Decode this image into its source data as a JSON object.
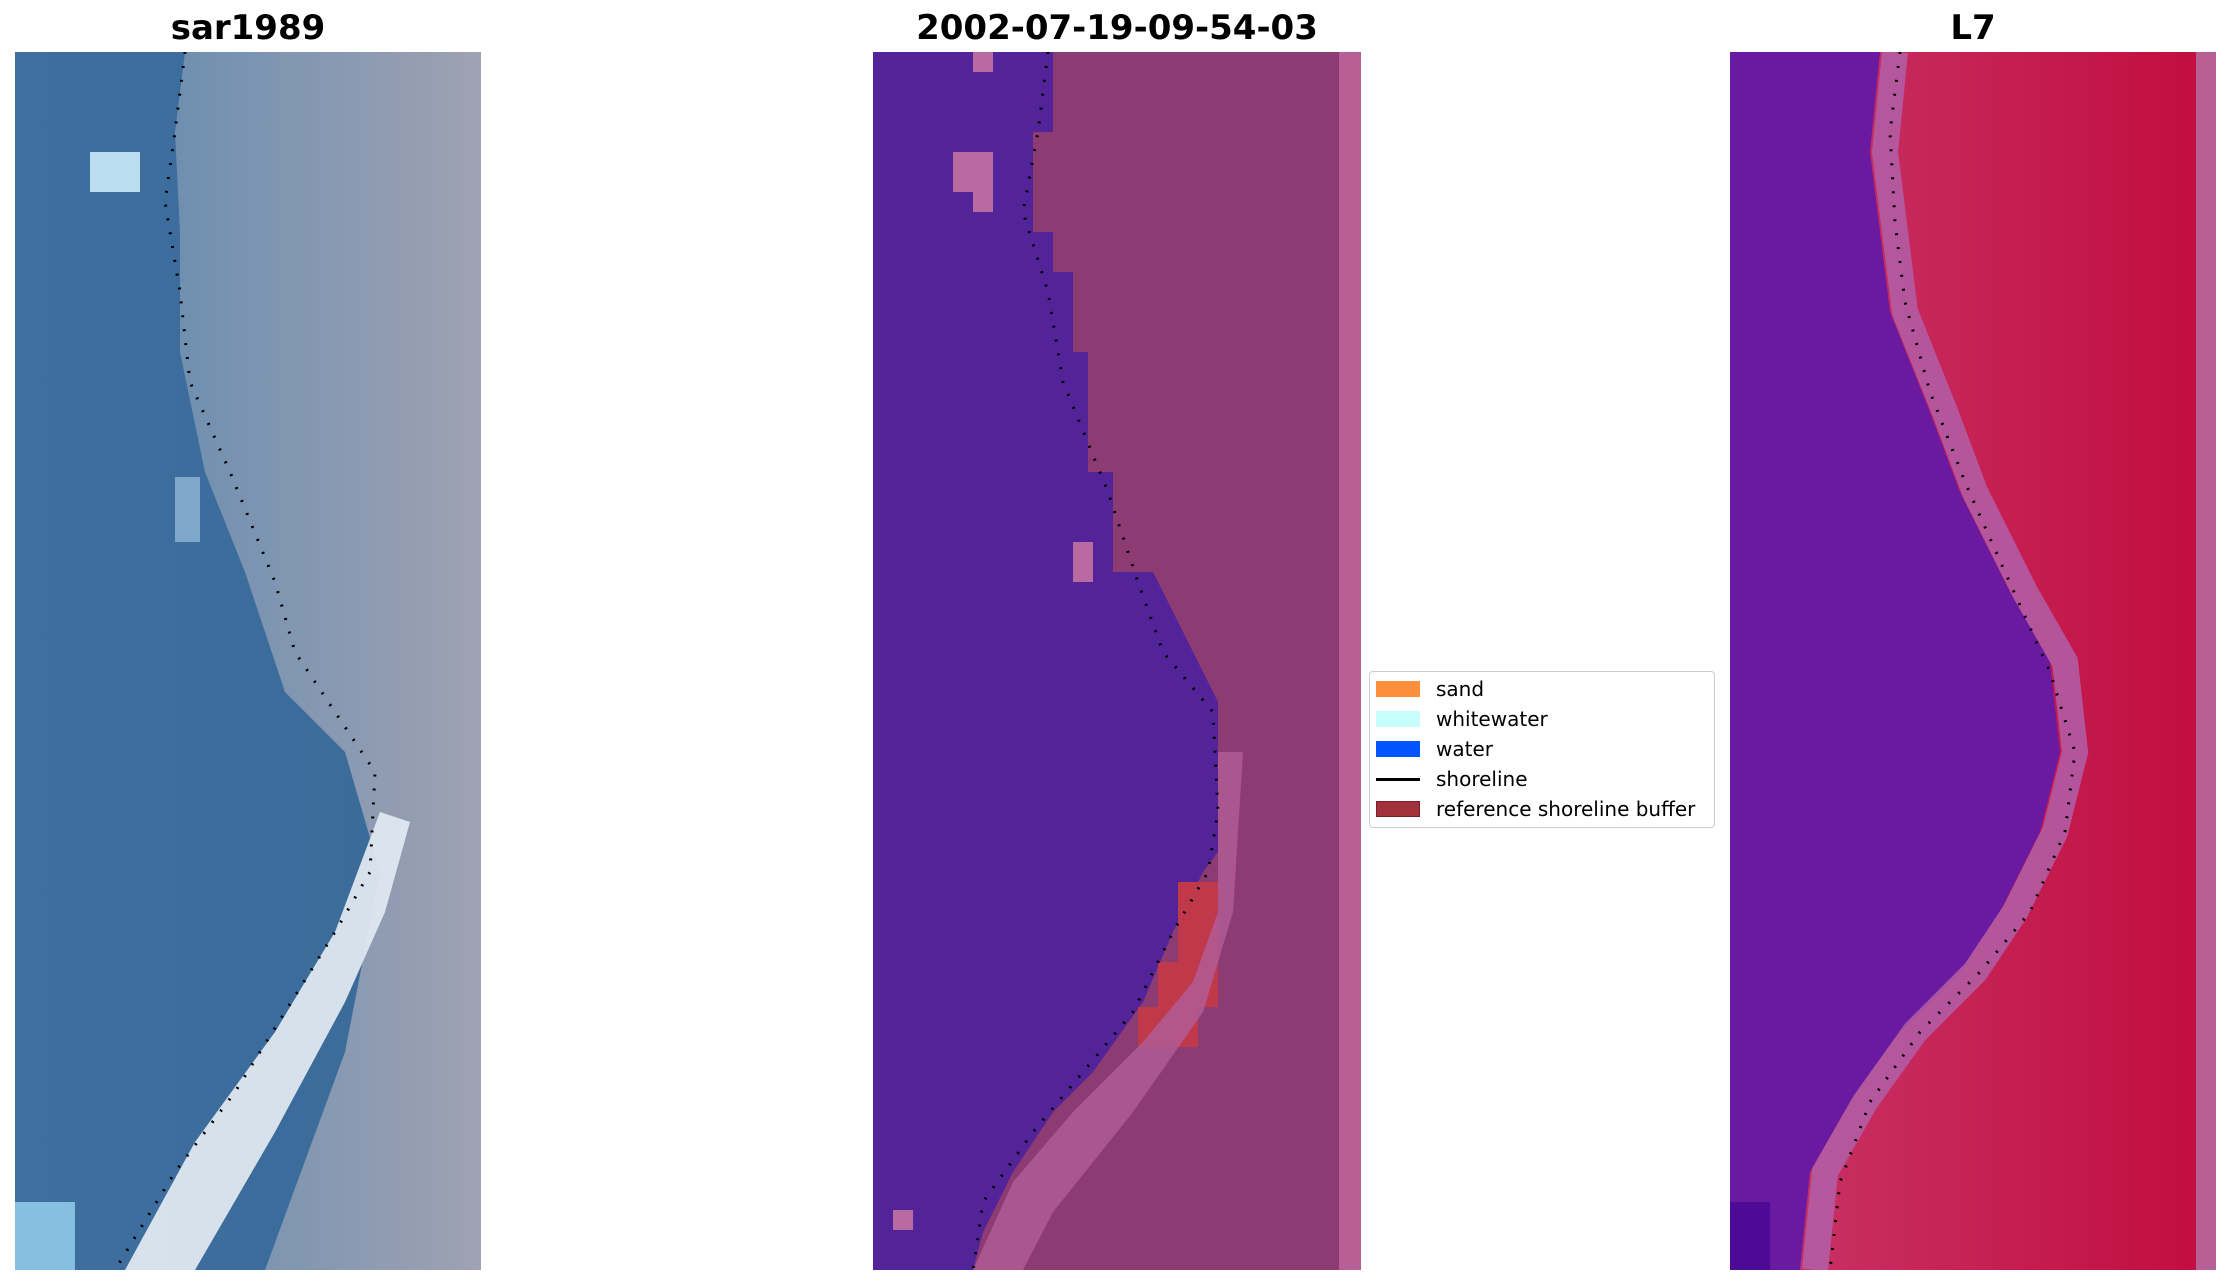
{
  "panels": {
    "left_title": "sar1989",
    "middle_title": "2002-07-19-09-54-03",
    "right_title": "L7"
  },
  "legend": {
    "items": [
      {
        "label": "sand",
        "color": "#fd8f3c",
        "kind": "patch"
      },
      {
        "label": "whitewater",
        "color": "#c7fdfb",
        "kind": "patch"
      },
      {
        "label": "water",
        "color": "#0055ff",
        "kind": "patch"
      },
      {
        "label": "shoreline",
        "color": "#000000",
        "kind": "line"
      },
      {
        "label": "reference shoreline buffer",
        "color": "#a1323b",
        "kind": "patch"
      }
    ]
  },
  "colors": {
    "water_class": "#53239a",
    "land_class": "#8d3b73",
    "right_water": "#6a1aa0",
    "right_land": "#c0104b"
  }
}
